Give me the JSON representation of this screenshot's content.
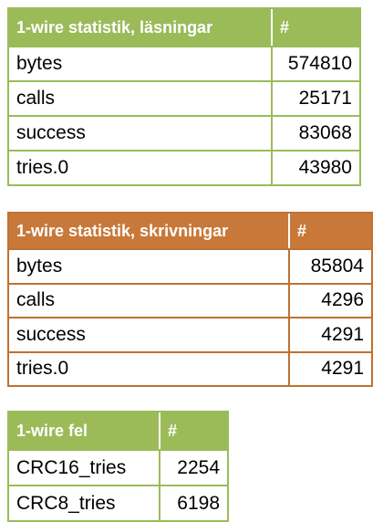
{
  "tables": [
    {
      "header": [
        "1-wire statistik, läsningar",
        "#"
      ],
      "rows": [
        [
          "bytes",
          574810
        ],
        [
          "calls",
          25171
        ],
        [
          "success",
          83068
        ],
        [
          "tries.0",
          43980
        ]
      ]
    },
    {
      "header": [
        "1-wire statistik, skrivningar",
        "#"
      ],
      "rows": [
        [
          "bytes",
          85804
        ],
        [
          "calls",
          4296
        ],
        [
          "success",
          4291
        ],
        [
          "tries.0",
          4291
        ]
      ]
    },
    {
      "header": [
        "1-wire fel",
        "#"
      ],
      "rows": [
        [
          "CRC16_tries",
          2254
        ],
        [
          "CRC8_tries",
          6198
        ]
      ]
    }
  ]
}
